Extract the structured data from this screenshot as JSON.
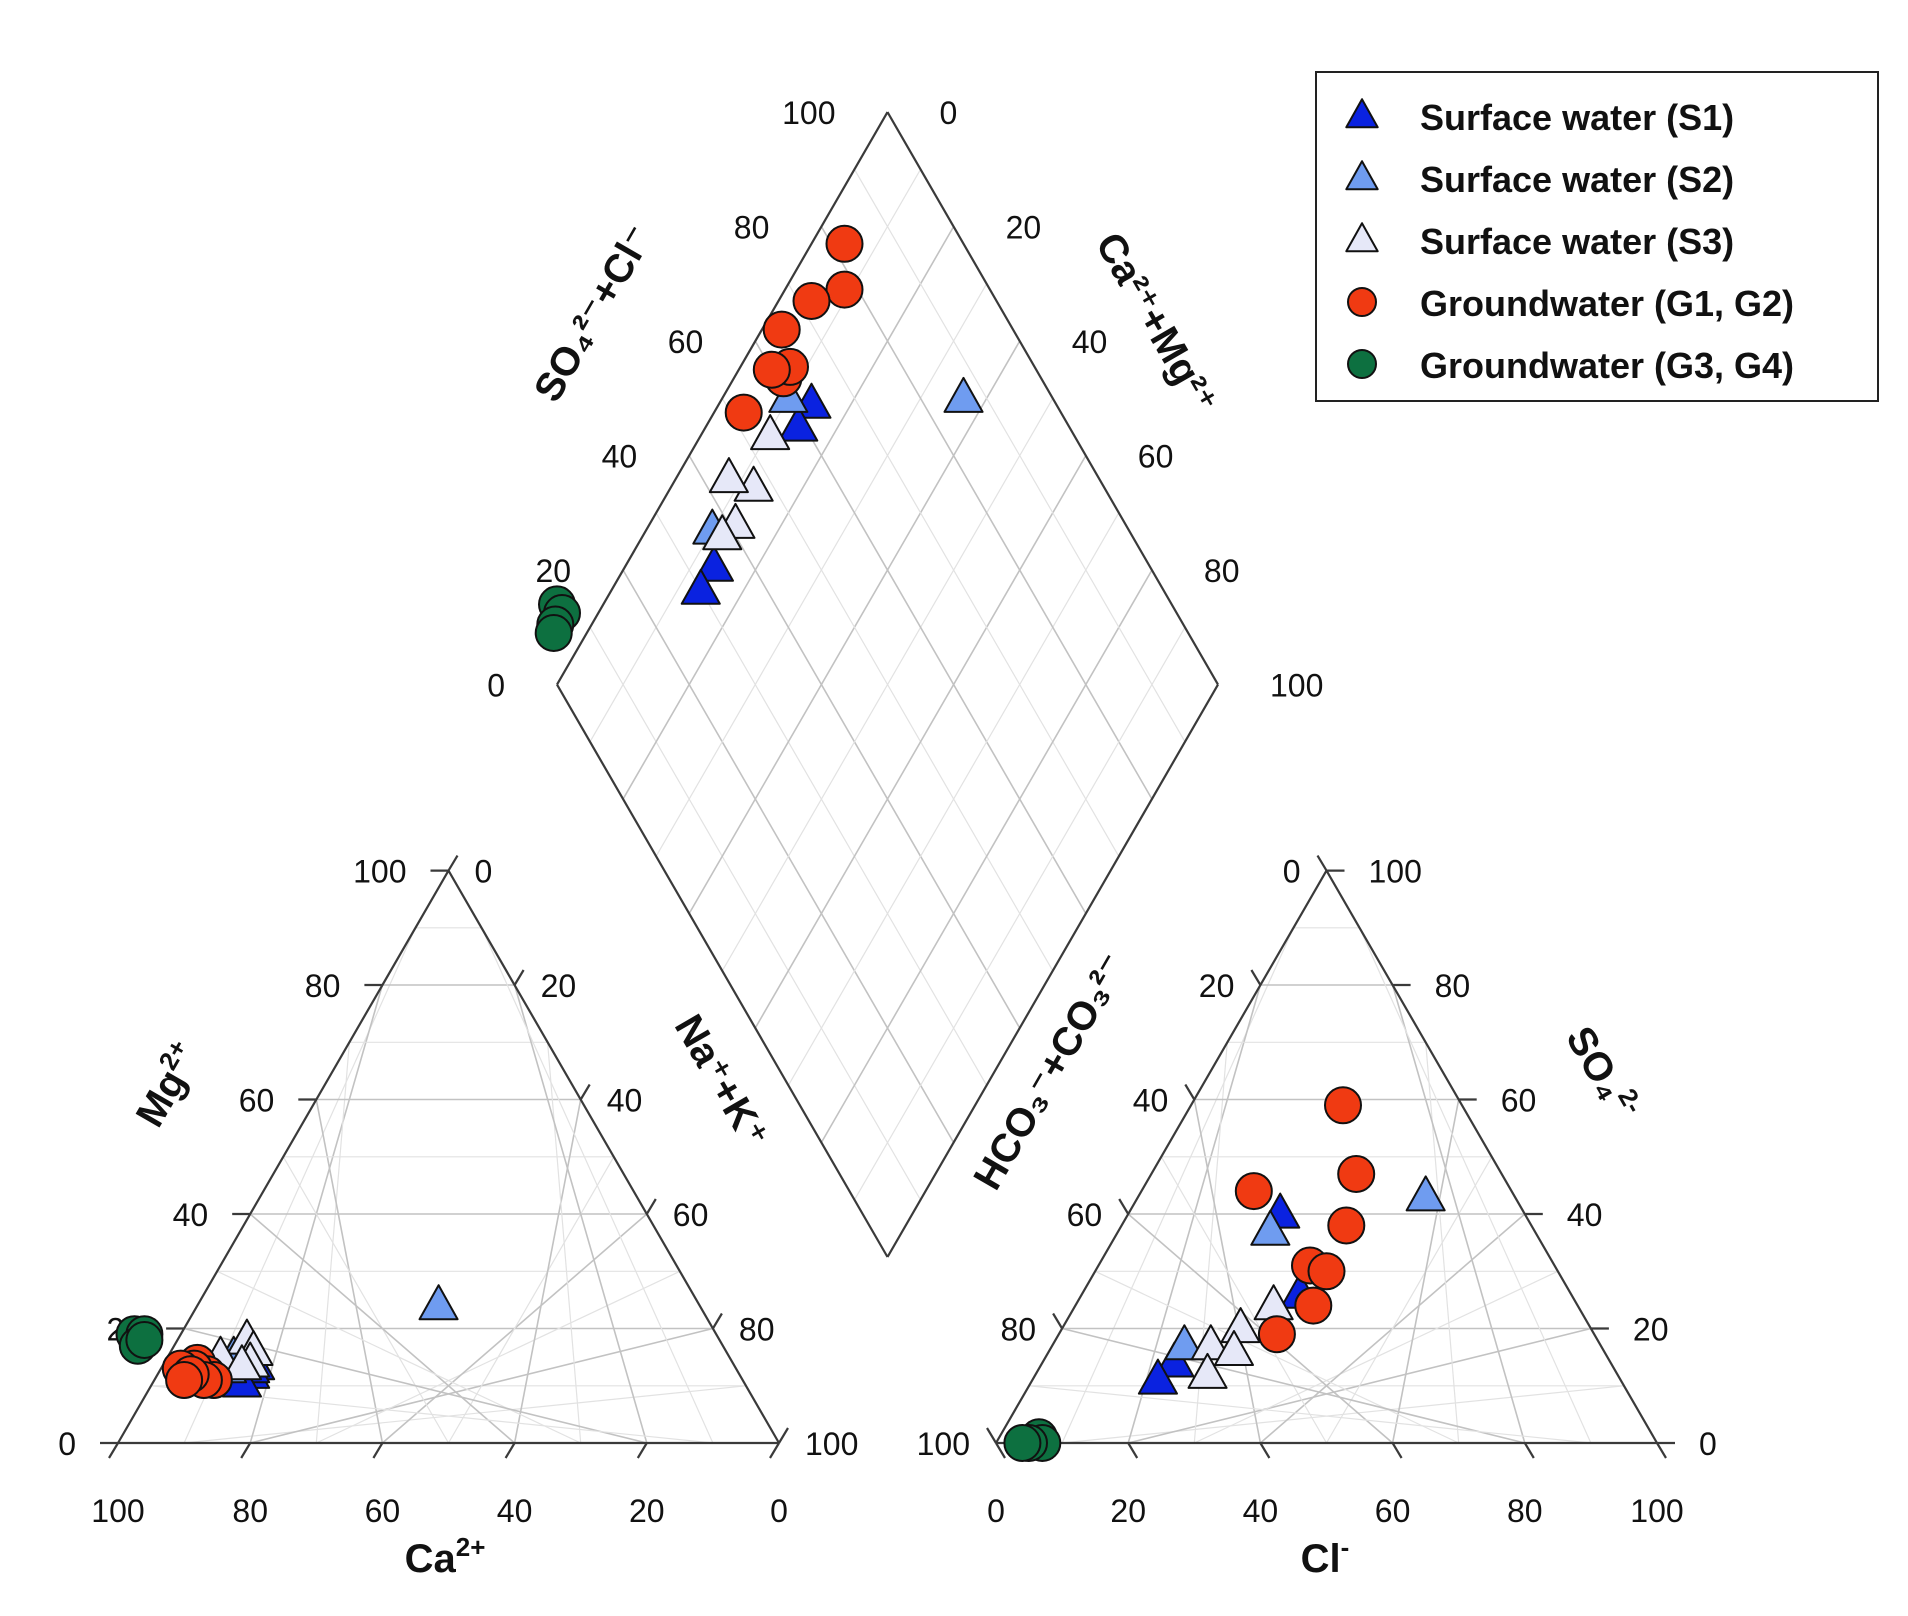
{
  "chart_data": {
    "type": "scatter",
    "subtype": "piper-diagram",
    "legend_position": "top-right",
    "grid": true,
    "series": [
      {
        "name": "Surface water (S1)",
        "marker": "triangle",
        "color": "#0a22e0",
        "points": [
          {
            "ca": 72.5,
            "mg": 13.5,
            "cl": 23,
            "so4": 40
          },
          {
            "ca": 74,
            "mg": 12,
            "cl": 33,
            "so4": 26
          },
          {
            "ca": 73.5,
            "mg": 13,
            "cl": 20,
            "so4": 14
          },
          {
            "ca": 76,
            "mg": 10.5,
            "cl": 19,
            "so4": 11
          }
        ]
      },
      {
        "name": "Surface water (S2)",
        "marker": "triangle",
        "color": "#6f9cf0",
        "points": [
          {
            "ca": 39.5,
            "mg": 24,
            "cl": 43.5,
            "so4": 43
          },
          {
            "ca": 77,
            "mg": 13,
            "cl": 23,
            "so4": 37
          },
          {
            "ca": 75,
            "mg": 15,
            "cl": 20,
            "so4": 17
          }
        ]
      },
      {
        "name": "Surface water (S3)",
        "marker": "triangle",
        "color": "#e6e8f8",
        "points": [
          {
            "ca": 71.5,
            "mg": 18,
            "cl": 30,
            "so4": 24
          },
          {
            "ca": 71.5,
            "mg": 16,
            "cl": 27,
            "so4": 20
          },
          {
            "ca": 73,
            "mg": 14,
            "cl": 24,
            "so4": 17
          },
          {
            "ca": 77,
            "mg": 15,
            "cl": 28,
            "so4": 16
          },
          {
            "ca": 74.5,
            "mg": 13.5,
            "cl": 26,
            "so4": 12
          }
        ]
      },
      {
        "name": "Groundwater (G1, G2)",
        "marker": "circle",
        "color": "#f03a12",
        "points": [
          {
            "ca": 81,
            "mg": 14,
            "cl": 23,
            "so4": 59
          },
          {
            "ca": 80.5,
            "mg": 12,
            "cl": 17,
            "so4": 44
          },
          {
            "ca": 80,
            "mg": 11,
            "cl": 31,
            "so4": 47
          },
          {
            "ca": 82,
            "mg": 13,
            "cl": 34,
            "so4": 38
          },
          {
            "ca": 81.5,
            "mg": 11,
            "cl": 32,
            "so4": 31
          },
          {
            "ca": 84,
            "mg": 13,
            "cl": 35,
            "so4": 30
          },
          {
            "ca": 83,
            "mg": 12,
            "cl": 36,
            "so4": 24
          },
          {
            "ca": 84.5,
            "mg": 11,
            "cl": 33,
            "so4": 19
          }
        ]
      },
      {
        "name": "Groundwater (G3, G4)",
        "marker": "circle",
        "color": "#0d7040",
        "points": [
          {
            "ca": 88,
            "mg": 19,
            "cl": 6,
            "so4": 1
          },
          {
            "ca": 86.5,
            "mg": 19,
            "cl": 7,
            "so4": 0
          },
          {
            "ca": 88.5,
            "mg": 17,
            "cl": 5,
            "so4": 0
          },
          {
            "ca": 87,
            "mg": 18,
            "cl": 4,
            "so4": 0
          }
        ]
      }
    ],
    "ticks": [
      "0",
      "20",
      "40",
      "60",
      "80",
      "100"
    ],
    "axis_labels": {
      "ca": {
        "base": "Ca",
        "sup": "2+"
      },
      "mg": {
        "base": "Mg",
        "sup": "2+"
      },
      "nak": {
        "text": "Na⁺+K⁺"
      },
      "cl": {
        "base": "Cl",
        "sup": "-"
      },
      "so4": {
        "base": "SO₄",
        "sup": "2-"
      },
      "hco3": {
        "text": "HCO₃⁻+CO₃²⁻"
      },
      "so4cl": {
        "text": "SO₄²⁻+Cl⁻"
      },
      "camg": {
        "text": "Ca²⁺+Mg²⁺"
      }
    }
  }
}
